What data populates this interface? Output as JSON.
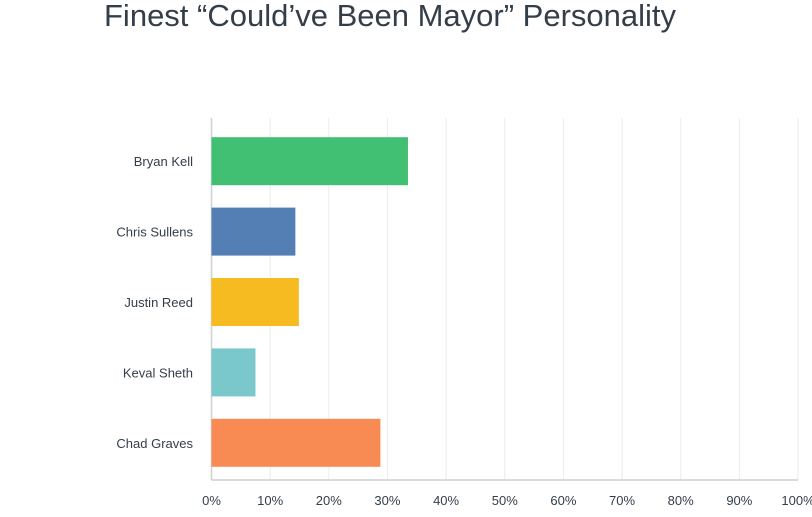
{
  "chart_data": {
    "type": "bar",
    "orientation": "horizontal",
    "title": "Finest “Could’ve Been Mayor” Personality",
    "categories": [
      "Bryan Kell",
      "Chris Sullens",
      "Justin Reed",
      "Keval Sheth",
      "Chad Graves"
    ],
    "values": [
      33.5,
      14.3,
      14.9,
      7.5,
      28.8
    ],
    "colors": [
      "#41bf73",
      "#537fb4",
      "#f6bb21",
      "#7ac8cb",
      "#f78b53"
    ],
    "xlim": [
      0,
      100
    ],
    "xticks": [
      "0%",
      "10%",
      "20%",
      "30%",
      "40%",
      "50%",
      "60%",
      "70%",
      "80%",
      "90%",
      "100%"
    ],
    "xlabel": "",
    "ylabel": "",
    "grid": true
  }
}
